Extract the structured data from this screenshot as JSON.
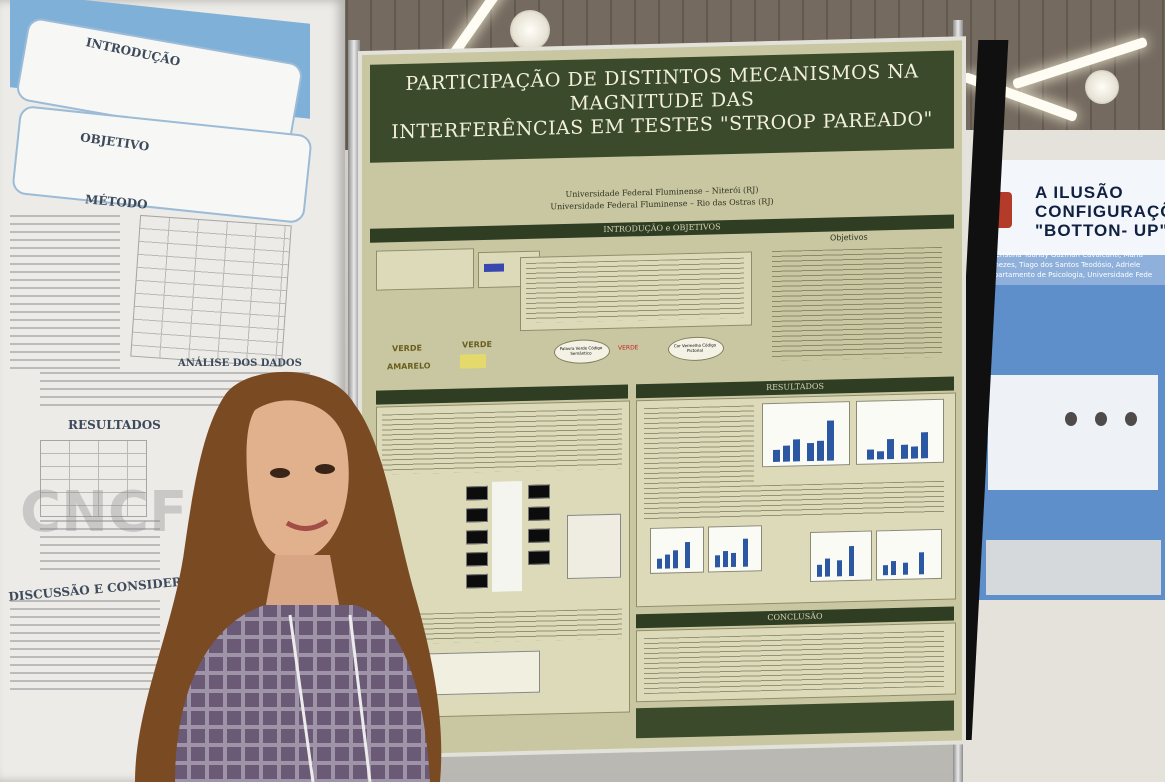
{
  "scene": {
    "description_colors": {
      "poster_bg": "#c9c7a2",
      "poster_band": "#3a4a2a",
      "right_poster_blue": "#5e8fcb"
    }
  },
  "main_poster": {
    "title_line1": "PARTICIPAÇÃO DE DISTINTOS MECANISMOS NA MAGNITUDE DAS",
    "title_line2": "INTERFERÊNCIAS EM TESTES \"STROOP PAREADO\"",
    "affiliation_1": "Universidade Federal Fluminense – Niterói (RJ)",
    "affiliation_2": "Universidade Federal Fluminense – Rio das Ostras (RJ)",
    "section_intro": "INTRODUÇÃO e OBJETIVOS",
    "section_results": "RESULTADOS",
    "section_conclusion": "CONCLUSÃO",
    "label_objectives": "Objetivos",
    "oval_left": "Palavra Verde Código Semântico",
    "oval_mid": "VERDE",
    "oval_right": "Cor Vermelha Código Pictorial",
    "word_verde_1": "VERDE",
    "word_amarelo": "AMARELO",
    "word_verde_2": "VERDE"
  },
  "left_poster": {
    "heading_intro": "INTRODUÇÃO",
    "heading_objective": "OBJETIVO",
    "heading_method": "MÉTODO",
    "heading_analysis": "ANÁLISE DOS DADOS",
    "heading_results": "RESULTADOS",
    "heading_discussion": "DISCUSSÃO E CONSIDERAÇÕES FINAIS",
    "watermark": "CNCF"
  },
  "right_poster": {
    "title_line1": "A ILUSÃO",
    "title_line2": "CONFIGURAÇÕES:",
    "title_line3": "\"BOTTON- UP\"",
    "authors_text": "na Cristina Taunay Guzmán Cavalcanti, Maria Menezes, Tiago dos Santos Teodósio, Adriele",
    "affiliation_text": "Departamento de Psicologia, Universidade Fede"
  }
}
